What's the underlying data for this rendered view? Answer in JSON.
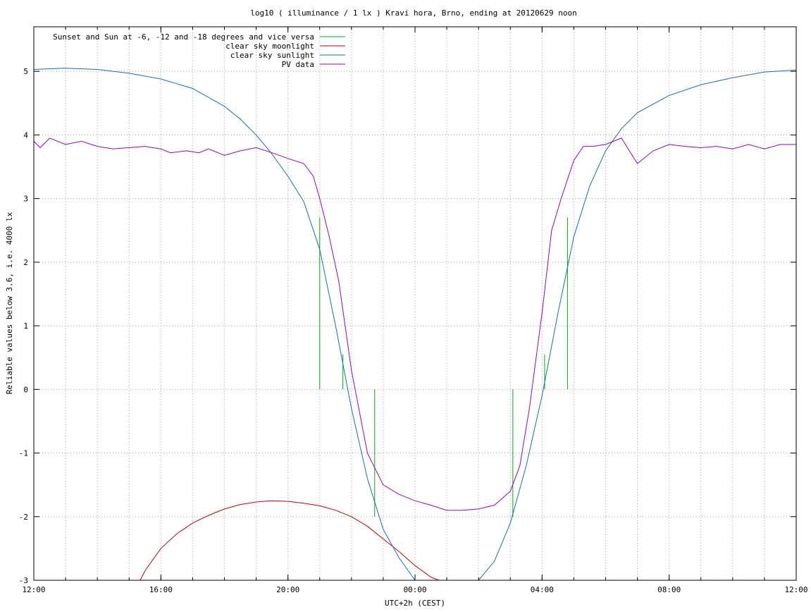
{
  "chart_data": {
    "type": "line",
    "title": "log10 ( illuminance / 1 lx ) Kravi hora, Brno, ending at 20120629 noon",
    "xlabel": "UTC+2h (CEST)",
    "ylabel": "Reliable values below 3.6, i.e. 4000 lx",
    "x_unit": "hours after 12:00 (CEST)",
    "xlim": [
      0,
      24
    ],
    "ylim": [
      -3,
      5.7
    ],
    "x_ticks": [
      0,
      4,
      8,
      12,
      16,
      20,
      24
    ],
    "x_tick_labels": [
      "12:00",
      "16:00",
      "20:00",
      "00:00",
      "04:00",
      "08:00",
      "12:00"
    ],
    "y_ticks": [
      -3,
      -2,
      -1,
      0,
      1,
      2,
      3,
      4,
      5
    ],
    "y_tick_labels": [
      "-3",
      "-2",
      "-1",
      "0",
      "1",
      "2",
      "3",
      "4",
      "5"
    ],
    "grid": true,
    "legend_position": "top-left",
    "series": [
      {
        "name": "Sunset and Sun at -6, -12 and -18 degrees and vice versa",
        "color": "#00b000",
        "kind": "impulses",
        "points": [
          [
            9.0,
            2.7
          ],
          [
            9.73,
            0.55
          ],
          [
            10.73,
            -2.0
          ],
          [
            15.08,
            -2.0
          ],
          [
            16.08,
            0.55
          ],
          [
            16.8,
            2.7
          ]
        ]
      },
      {
        "name": "clear sky moonlight",
        "color": "#cc0000",
        "x": [
          3.35,
          3.5,
          4.0,
          4.5,
          5.0,
          5.5,
          6.0,
          6.5,
          7.0,
          7.5,
          8.0,
          8.5,
          9.0,
          9.5,
          10.0,
          10.5,
          11.0,
          11.5,
          12.0,
          12.5,
          12.75
        ],
        "y": [
          -3.0,
          -2.85,
          -2.5,
          -2.27,
          -2.1,
          -1.98,
          -1.88,
          -1.81,
          -1.77,
          -1.75,
          -1.76,
          -1.79,
          -1.83,
          -1.9,
          -2.0,
          -2.15,
          -2.35,
          -2.55,
          -2.77,
          -2.95,
          -3.0
        ]
      },
      {
        "name": "clear sky sunlight",
        "color": "#1070c0",
        "x": [
          0,
          1,
          2,
          3,
          4,
          5,
          6,
          6.5,
          7,
          7.5,
          8,
          8.5,
          9,
          9.5,
          10,
          10.5,
          11,
          11.5,
          12.0,
          12.5,
          13,
          13.5,
          14,
          14.5,
          15,
          15.5,
          16,
          16.5,
          17,
          17.5,
          18,
          18.5,
          19,
          20,
          21,
          22,
          23,
          24
        ],
        "y": [
          5.03,
          5.05,
          5.03,
          4.97,
          4.88,
          4.73,
          4.45,
          4.25,
          4.0,
          3.7,
          3.35,
          2.95,
          2.2,
          1.0,
          -0.3,
          -1.4,
          -2.2,
          -2.65,
          -3.0,
          -3.3,
          -3.35,
          -3.2,
          -3.0,
          -2.7,
          -2.1,
          -1.2,
          -0.1,
          1.2,
          2.4,
          3.2,
          3.75,
          4.1,
          4.35,
          4.62,
          4.79,
          4.9,
          4.99,
          5.02
        ]
      },
      {
        "name": "PV data",
        "color": "#9900cc",
        "x": [
          0,
          0.2,
          0.5,
          1.0,
          1.5,
          2.0,
          2.5,
          3.0,
          3.5,
          4.0,
          4.3,
          4.8,
          5.2,
          5.5,
          6.0,
          6.5,
          7.0,
          7.5,
          8.0,
          8.5,
          8.8,
          9.0,
          9.3,
          9.6,
          10.0,
          10.5,
          11.0,
          11.5,
          12.0,
          12.5,
          13.0,
          13.5,
          14.0,
          14.5,
          15.0,
          15.3,
          15.6,
          16.0,
          16.3,
          16.6,
          17.0,
          17.3,
          17.6,
          18.0,
          18.5,
          19.0,
          19.5,
          20.0,
          20.5,
          21.0,
          21.5,
          22.0,
          22.5,
          23.0,
          23.5,
          24.0
        ],
        "y": [
          3.9,
          3.8,
          3.95,
          3.85,
          3.9,
          3.82,
          3.78,
          3.8,
          3.82,
          3.78,
          3.72,
          3.75,
          3.72,
          3.78,
          3.68,
          3.75,
          3.8,
          3.72,
          3.63,
          3.55,
          3.35,
          3.0,
          2.4,
          1.7,
          0.3,
          -1.0,
          -1.5,
          -1.65,
          -1.75,
          -1.82,
          -1.9,
          -1.9,
          -1.88,
          -1.82,
          -1.6,
          -1.2,
          -0.3,
          1.2,
          2.5,
          3.0,
          3.6,
          3.82,
          3.82,
          3.85,
          3.95,
          3.55,
          3.75,
          3.85,
          3.82,
          3.8,
          3.82,
          3.78,
          3.85,
          3.78,
          3.85,
          3.85
        ]
      }
    ]
  }
}
